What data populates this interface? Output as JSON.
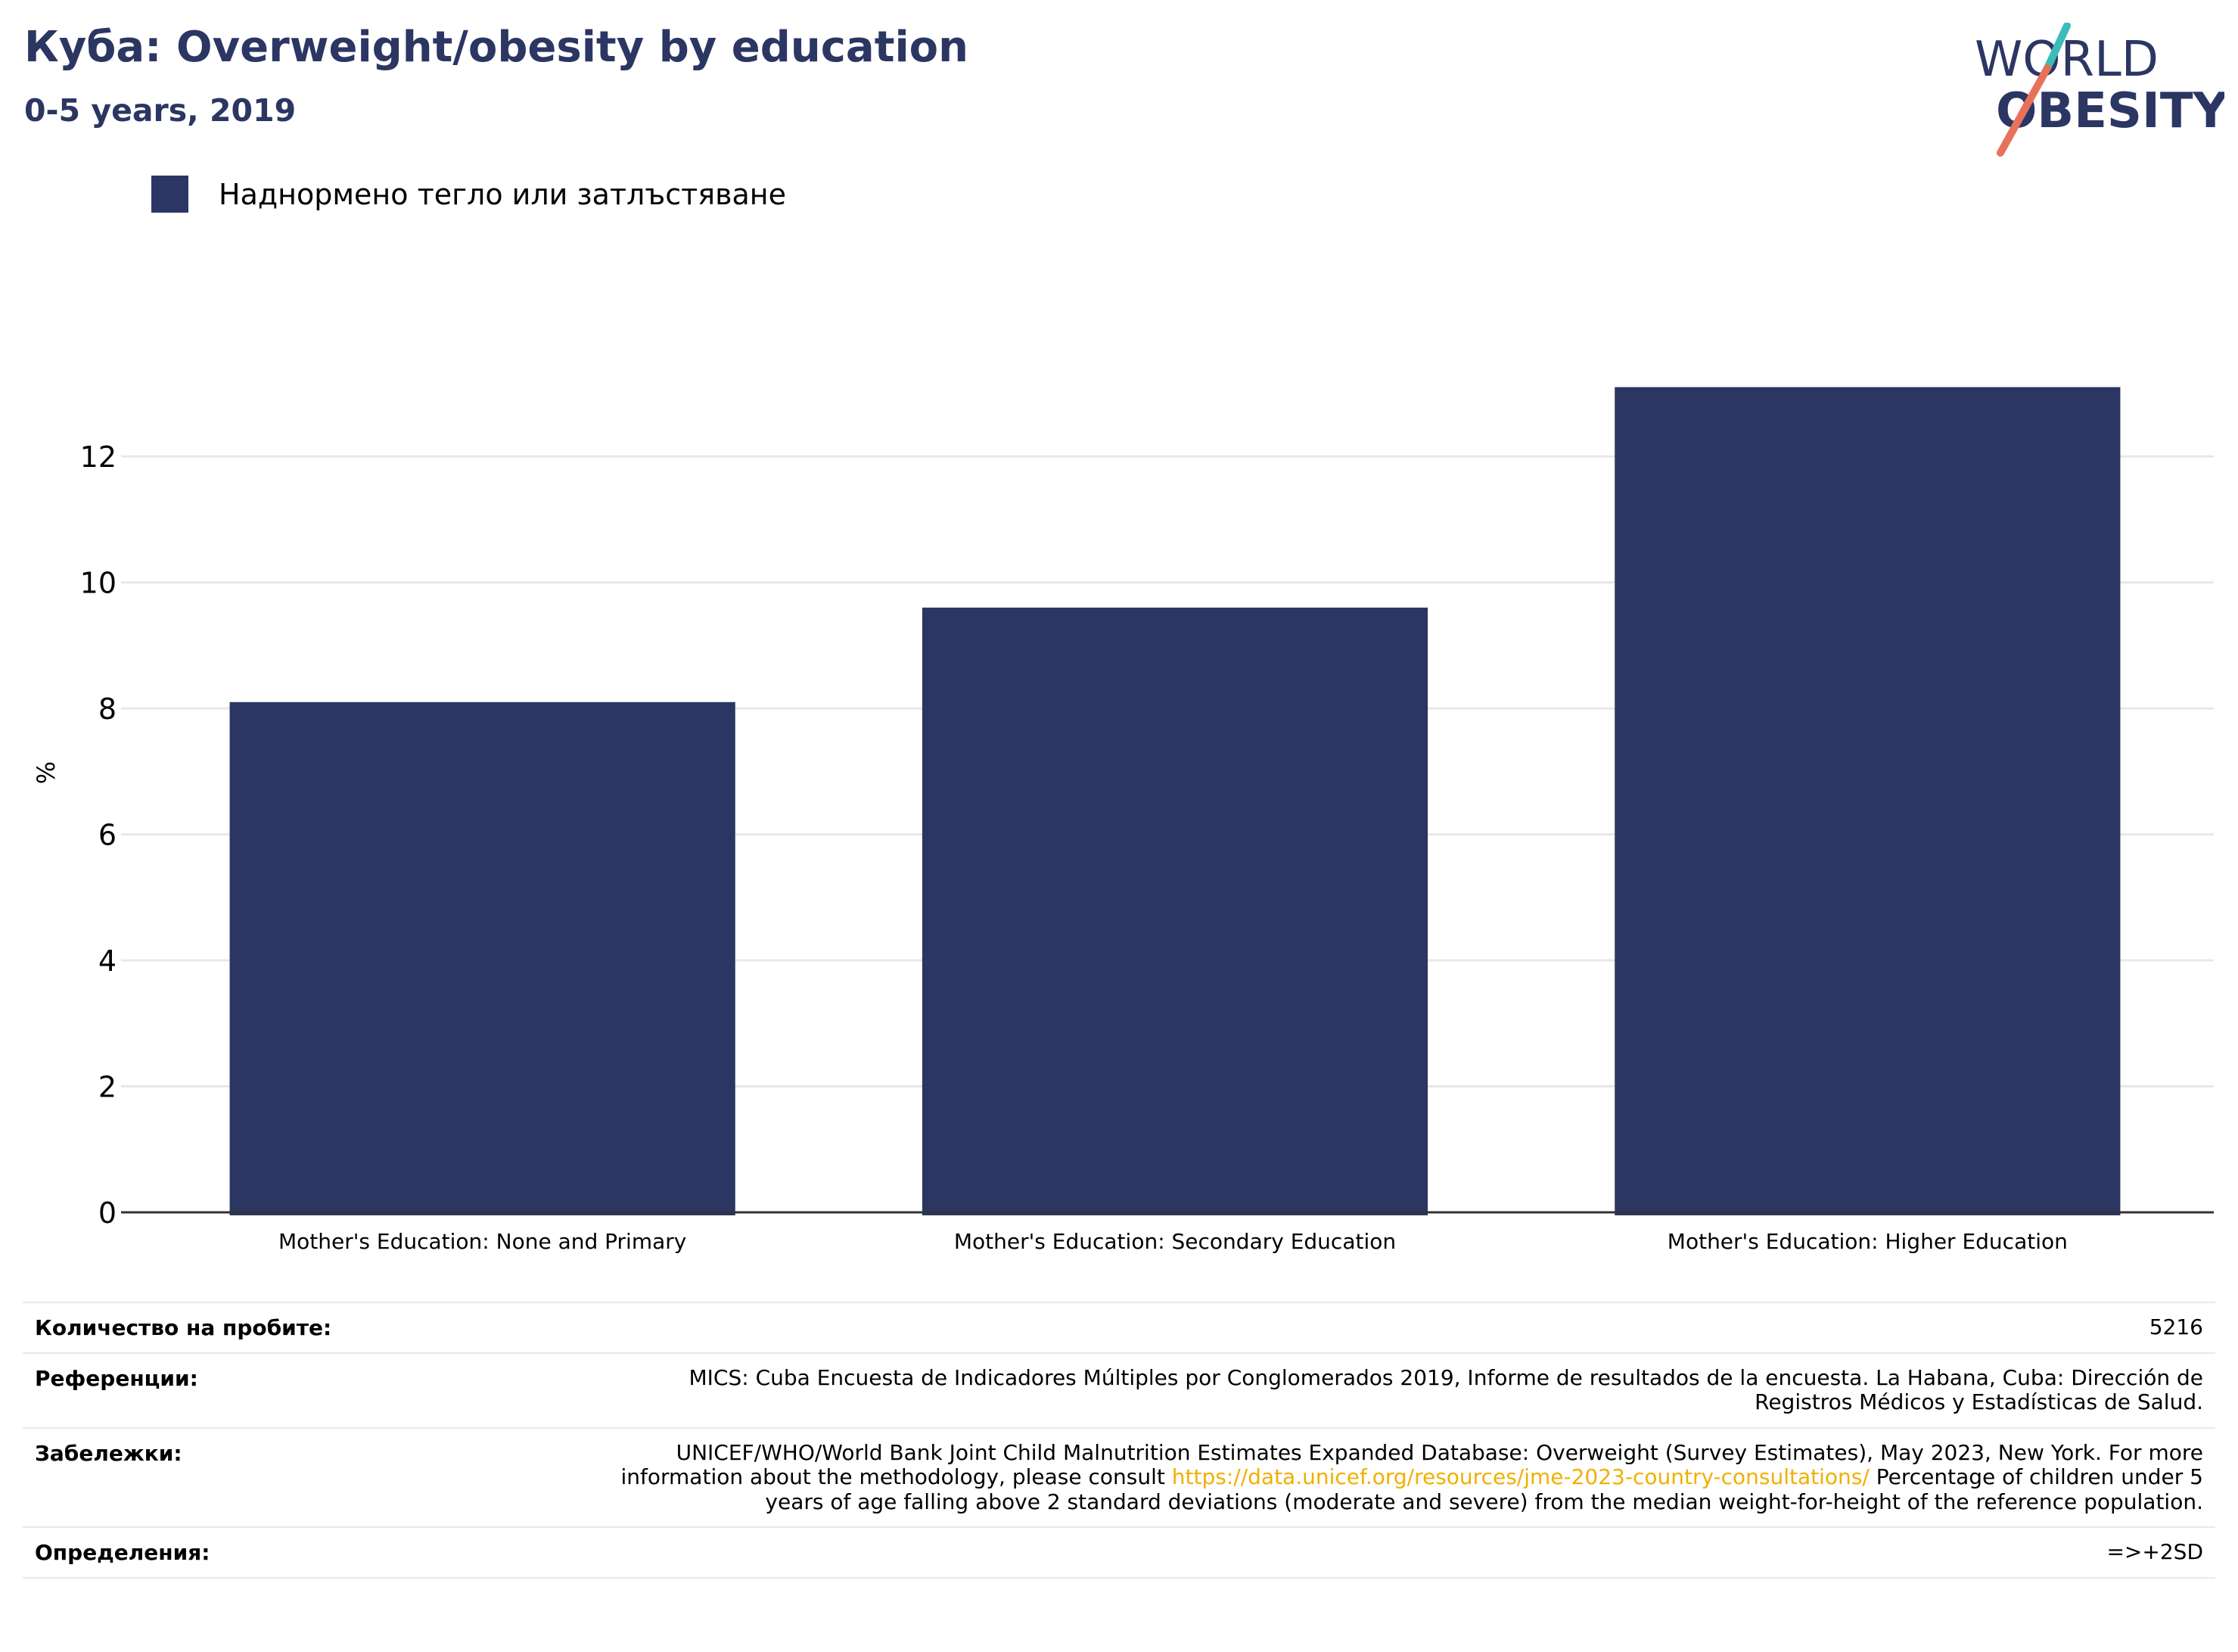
{
  "header": {
    "title": "Куба: Overweight/obesity by education",
    "subtitle": "0-5 years, 2019"
  },
  "logo": {
    "line1": "WORLD",
    "line2": "OBESITY"
  },
  "colors": {
    "bar": "#2b3663",
    "title": "#2b3663",
    "grid": "#e8e8e8",
    "axis": "#333333",
    "link": "#f0b000",
    "logo_teal": "#3bbcb8",
    "logo_coral": "#e8715a"
  },
  "chart_data": {
    "type": "bar",
    "categories": [
      "Mother's Education: None and Primary",
      "Mother's Education: Secondary Education",
      "Mother's Education: Higher Education"
    ],
    "series": [
      {
        "name": "Наднормено тегло или затлъстяване",
        "values": [
          8.1,
          9.6,
          13.1
        ]
      }
    ],
    "ylabel": "%",
    "ylim": [
      0,
      14.2
    ],
    "yticks": [
      0,
      2,
      4,
      6,
      8,
      10,
      12
    ],
    "grid": true,
    "legend": "top-left"
  },
  "table": {
    "sample_label": "Количество на пробите:",
    "sample_value": "5216",
    "refs_label": "Референции:",
    "refs_value": "MICS: Cuba Encuesta de Indicadores Múltiples por Conglomerados 2019, Informe de resultados de la encuesta. La Habana, Cuba: Dirección de Registros Médicos y Estadísticas de Salud.",
    "notes_label": "Забележки:",
    "notes_before": "UNICEF/WHO/World Bank Joint Child Malnutrition Estimates Expanded Database: Overweight (Survey Estimates), May 2023, New York. For more information about the methodology, please consult",
    "notes_link": "https://data.unicef.org/resources/jme-2023-country-consultations/",
    "notes_after": "Percentage of children under 5 years of age falling above 2 standard deviations (moderate and severe) from the median weight-for-height of the reference population.",
    "defs_label": "Определения:",
    "defs_value": "=>+2SD"
  }
}
